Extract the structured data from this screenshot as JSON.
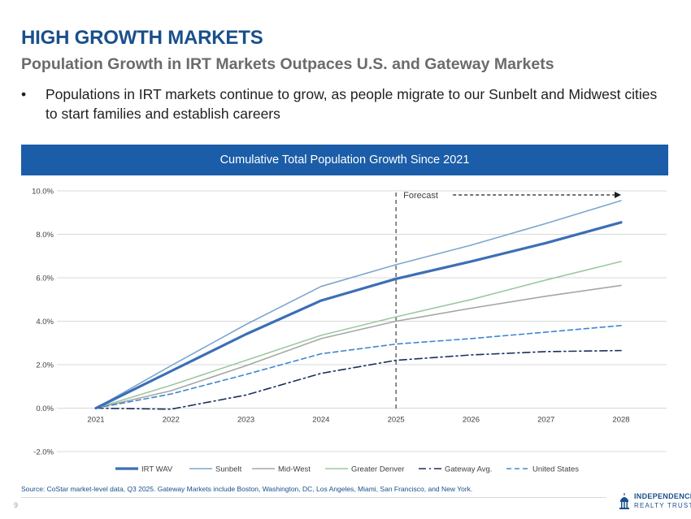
{
  "header": {
    "title": "HIGH GROWTH MARKETS",
    "subtitle": "Population Growth in IRT Markets Outpaces U.S. and Gateway Markets",
    "bullet_marker": "•",
    "bullet_text": "Populations in IRT markets continue to grow, as people migrate to our Sunbelt and Midwest cities to start families and establish careers"
  },
  "banner": {
    "text": "Cumulative Total Population Growth Since 2021"
  },
  "chart_data": {
    "type": "line",
    "title": "Cumulative Total Population Growth Since 2021",
    "x": [
      "2021",
      "2022",
      "2023",
      "2024",
      "2025",
      "2026",
      "2027",
      "2028"
    ],
    "ylim": [
      -2.0,
      10.0
    ],
    "yticks": [
      -2.0,
      0.0,
      2.0,
      4.0,
      6.0,
      8.0,
      10.0
    ],
    "ytick_labels": [
      "-2.0%",
      "0.0%",
      "2.0%",
      "4.0%",
      "6.0%",
      "8.0%",
      "10.0%"
    ],
    "ylabel": "",
    "xlabel": "",
    "grid": true,
    "legend_position": "bottom",
    "forecast_start": "2025",
    "forecast_label": "Forecast",
    "series": [
      {
        "name": "IRT WAV",
        "values": [
          0.0,
          1.7,
          3.4,
          4.95,
          5.95,
          6.75,
          7.6,
          8.55
        ],
        "color": "#3b6fb6",
        "style": "solid-thick"
      },
      {
        "name": "Sunbelt",
        "values": [
          0.0,
          1.95,
          3.85,
          5.6,
          6.6,
          7.5,
          8.5,
          9.55
        ],
        "color": "#7ba7cf",
        "style": "solid"
      },
      {
        "name": "Mid-West",
        "values": [
          0.0,
          0.8,
          1.95,
          3.2,
          4.0,
          4.6,
          5.15,
          5.65
        ],
        "color": "#a6a6a6",
        "style": "solid"
      },
      {
        "name": "Greater Denver",
        "values": [
          0.0,
          1.05,
          2.2,
          3.35,
          4.2,
          5.0,
          5.9,
          6.75
        ],
        "color": "#9dc8a0",
        "style": "solid"
      },
      {
        "name": "Gateway Avg.",
        "values": [
          0.0,
          -0.05,
          0.6,
          1.6,
          2.2,
          2.45,
          2.6,
          2.65
        ],
        "color": "#1b2f5c",
        "style": "dashdot"
      },
      {
        "name": "United States",
        "values": [
          0.0,
          0.65,
          1.55,
          2.5,
          2.95,
          3.2,
          3.5,
          3.8
        ],
        "color": "#3f87cf",
        "style": "dashed"
      }
    ]
  },
  "footer": {
    "source": "Source: CoStar market-level data, Q3 2025. Gateway Markets include Boston, Washington, DC, Los Angeles, Miami, San Francisco, and New York.",
    "page_number": "9",
    "logo_line1": "INDEPENDENCE",
    "logo_line2": "REALTY TRUST"
  }
}
